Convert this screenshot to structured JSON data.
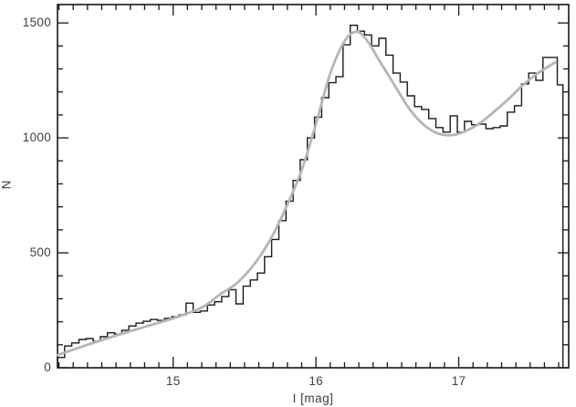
{
  "figure": {
    "kind": "astronomy-luminosity-function-plot",
    "background_color": "#ffffff",
    "axes_color": "#161616",
    "tick_label_color": "#3f3f3f"
  },
  "chart_data": {
    "type": "line",
    "title": "",
    "xlabel": "I [mag]",
    "ylabel": "N",
    "xlim": [
      14.19,
      17.77
    ],
    "ylim": [
      0,
      1580
    ],
    "grid": false,
    "legend": "none",
    "x_ticks": [
      {
        "value": 15,
        "label": "15"
      },
      {
        "value": 16,
        "label": "16"
      },
      {
        "value": 17,
        "label": "17"
      }
    ],
    "x_minor_step": 0.1,
    "y_ticks": [
      {
        "value": 0,
        "label": "0"
      },
      {
        "value": 500,
        "label": "500"
      },
      {
        "value": 1000,
        "label": "1000"
      },
      {
        "value": 1500,
        "label": "1500"
      }
    ],
    "y_minor_step": 100,
    "series": [
      {
        "name": "star-count-histogram",
        "style": "step-histogram",
        "color": "#1a1a1a",
        "line_width": 1.4,
        "bin_start": 14.19,
        "bin_width": 0.05,
        "data_end": 17.73,
        "values": [
          45,
          95,
          108,
          123,
          127,
          115,
          135,
          152,
          146,
          163,
          182,
          194,
          202,
          210,
          206,
          215,
          222,
          230,
          281,
          241,
          247,
          273,
          287,
          310,
          340,
          278,
          355,
          382,
          412,
          483,
          558,
          640,
          725,
          815,
          905,
          1000,
          1090,
          1175,
          1240,
          1266,
          1405,
          1490,
          1464,
          1448,
          1400,
          1433,
          1360,
          1282,
          1243,
          1183,
          1136,
          1124,
          1084,
          1045,
          1025,
          1096,
          1025,
          1072,
          1057,
          1060,
          1040,
          1045,
          1052,
          1112,
          1140,
          1235,
          1282,
          1250,
          1350,
          1350,
          1231
        ]
      },
      {
        "name": "model-fit-curve",
        "style": "smooth-line",
        "color": "#b5b5b5",
        "line_width": 2.8,
        "x": [
          14.19,
          14.4,
          14.6,
          14.8,
          15.0,
          15.2,
          15.33,
          15.45,
          15.58,
          15.7,
          15.8,
          15.9,
          16.0,
          16.1,
          16.2,
          16.28,
          16.35,
          16.45,
          16.55,
          16.65,
          16.75,
          16.85,
          16.95,
          17.05,
          17.15,
          17.25,
          17.35,
          17.45,
          17.55,
          17.68
        ],
        "y": [
          55,
          100,
          140,
          178,
          215,
          262,
          320,
          370,
          460,
          580,
          710,
          860,
          1060,
          1280,
          1420,
          1462,
          1430,
          1330,
          1230,
          1130,
          1060,
          1020,
          1012,
          1030,
          1065,
          1115,
          1170,
          1230,
          1280,
          1330
        ]
      }
    ]
  }
}
